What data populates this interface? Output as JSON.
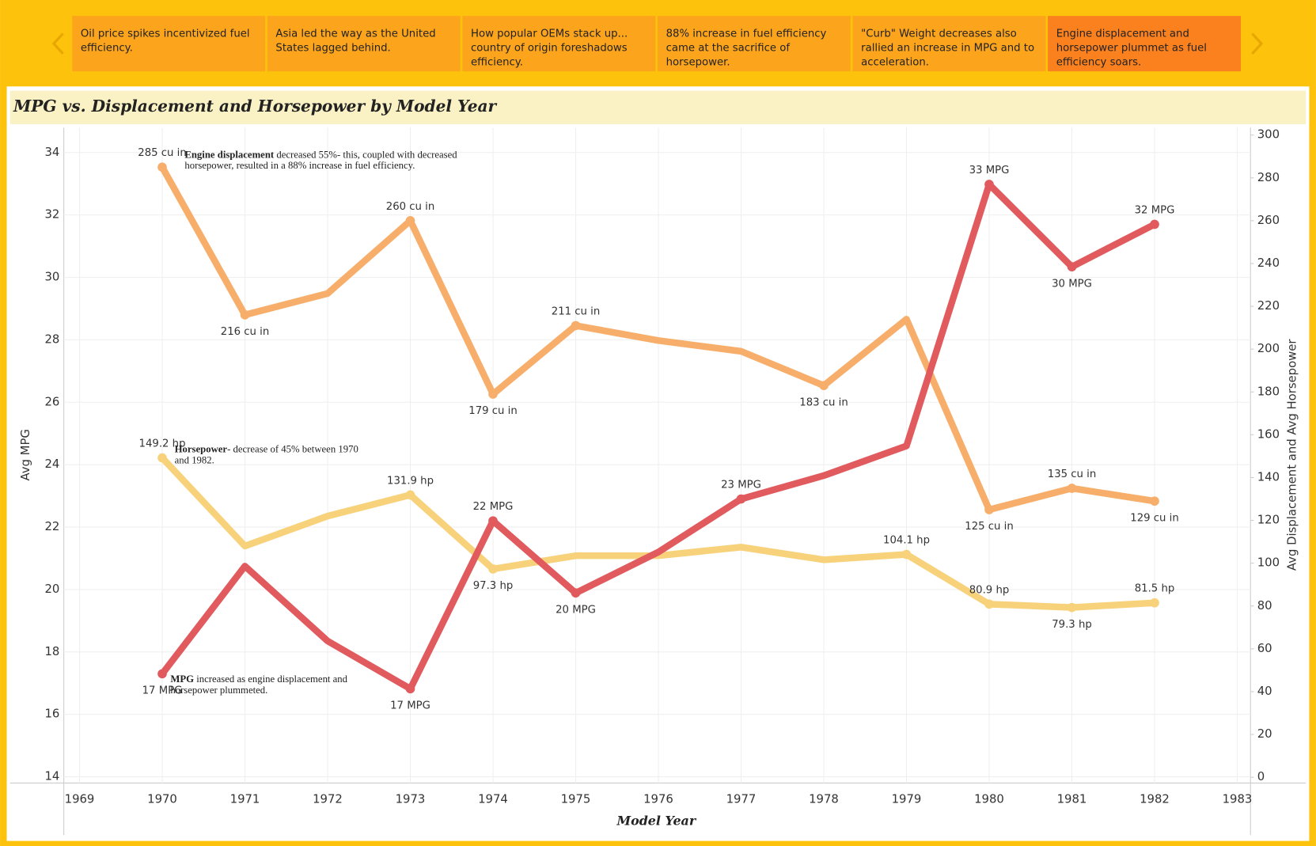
{
  "story_points": {
    "selected": 5,
    "items": [
      "Oil price spikes incentivized fuel efficiency.",
      "Asia led the way as the United States lagged behind.",
      "How popular OEMs stack up... country of origin foreshadows efficiency.",
      "88% increase in fuel efficiency came at the sacrifice of horsepower.",
      "\"Curb\" Weight decreases also rallied an increase in MPG and to acceleration.",
      "Engine displacement and horsepower plummet as fuel efficiency soars."
    ]
  },
  "chart_data": {
    "type": "line",
    "title": "MPG vs. Displacement and Horsepower by Model Year",
    "x_label": "Model Year",
    "y_label": "Avg MPG",
    "y2_label": "Avg Displacement and Avg Horsepower",
    "x": [
      1970,
      1971,
      1972,
      1973,
      1974,
      1975,
      1976,
      1977,
      1978,
      1979,
      1980,
      1981,
      1982
    ],
    "xlim": [
      1968.81,
      1983.16
    ],
    "xticks": [
      1969,
      1970,
      1971,
      1972,
      1973,
      1974,
      1975,
      1976,
      1977,
      1978,
      1979,
      1980,
      1981,
      1982,
      1983
    ],
    "ylim": [
      13.8,
      34.8
    ],
    "yticks": [
      14,
      16,
      18,
      20,
      22,
      24,
      26,
      28,
      30,
      32,
      34
    ],
    "y2lim": [
      -2.7,
      303.5
    ],
    "y2ticks": [
      0,
      20,
      40,
      60,
      80,
      100,
      120,
      140,
      160,
      180,
      200,
      220,
      240,
      260,
      280,
      300
    ],
    "grid": true,
    "series": [
      {
        "name": "Avg Displacement",
        "color": "#f8ae6b",
        "axis": "y2",
        "values": [
          285,
          216,
          226,
          260,
          179,
          211,
          204,
          199,
          183,
          214,
          125,
          135,
          129
        ],
        "value_labels": [
          "285 cu in",
          "216 cu in",
          null,
          "260 cu in",
          "179 cu in",
          "211 cu in",
          null,
          null,
          "183 cu in",
          null,
          "125 cu in",
          "135 cu in",
          "129 cu in"
        ]
      },
      {
        "name": "Avg Horsepower",
        "color": "#f7d27b",
        "axis": "y2",
        "values": [
          149.2,
          108,
          122,
          131.9,
          97.3,
          103.5,
          103.5,
          107.5,
          101.6,
          104.1,
          80.9,
          79.3,
          81.5
        ],
        "value_labels": [
          "149.2 hp",
          null,
          null,
          "131.9 hp",
          "97.3 hp",
          null,
          null,
          null,
          null,
          "104.1 hp",
          "80.9 hp",
          "79.3 hp",
          "81.5 hp"
        ]
      },
      {
        "name": "Avg MPG",
        "color": "#e05a5e",
        "values": [
          17.3,
          20.75,
          18.35,
          16.82,
          22.2,
          19.89,
          21.2,
          22.9,
          23.65,
          24.6,
          32.98,
          30.34,
          31.7
        ],
        "value_labels": [
          "17 MPG",
          null,
          null,
          "17 MPG",
          "22 MPG",
          "20 MPG",
          null,
          "23 MPG",
          null,
          null,
          "33 MPG",
          "30 MPG",
          "32 MPG"
        ]
      }
    ],
    "annotations": [
      {
        "bold": "Engine displacement",
        "text": " decreased 55%- this, coupled with decreased horsepower, resulted in a 88% increase in fuel efficiency."
      },
      {
        "bold": "Horsepower",
        "text": "- decrease of 45% between 1970 and 1982."
      },
      {
        "bold": "MPG",
        "text": " increased as engine displacement and horsepower plummeted."
      }
    ]
  }
}
